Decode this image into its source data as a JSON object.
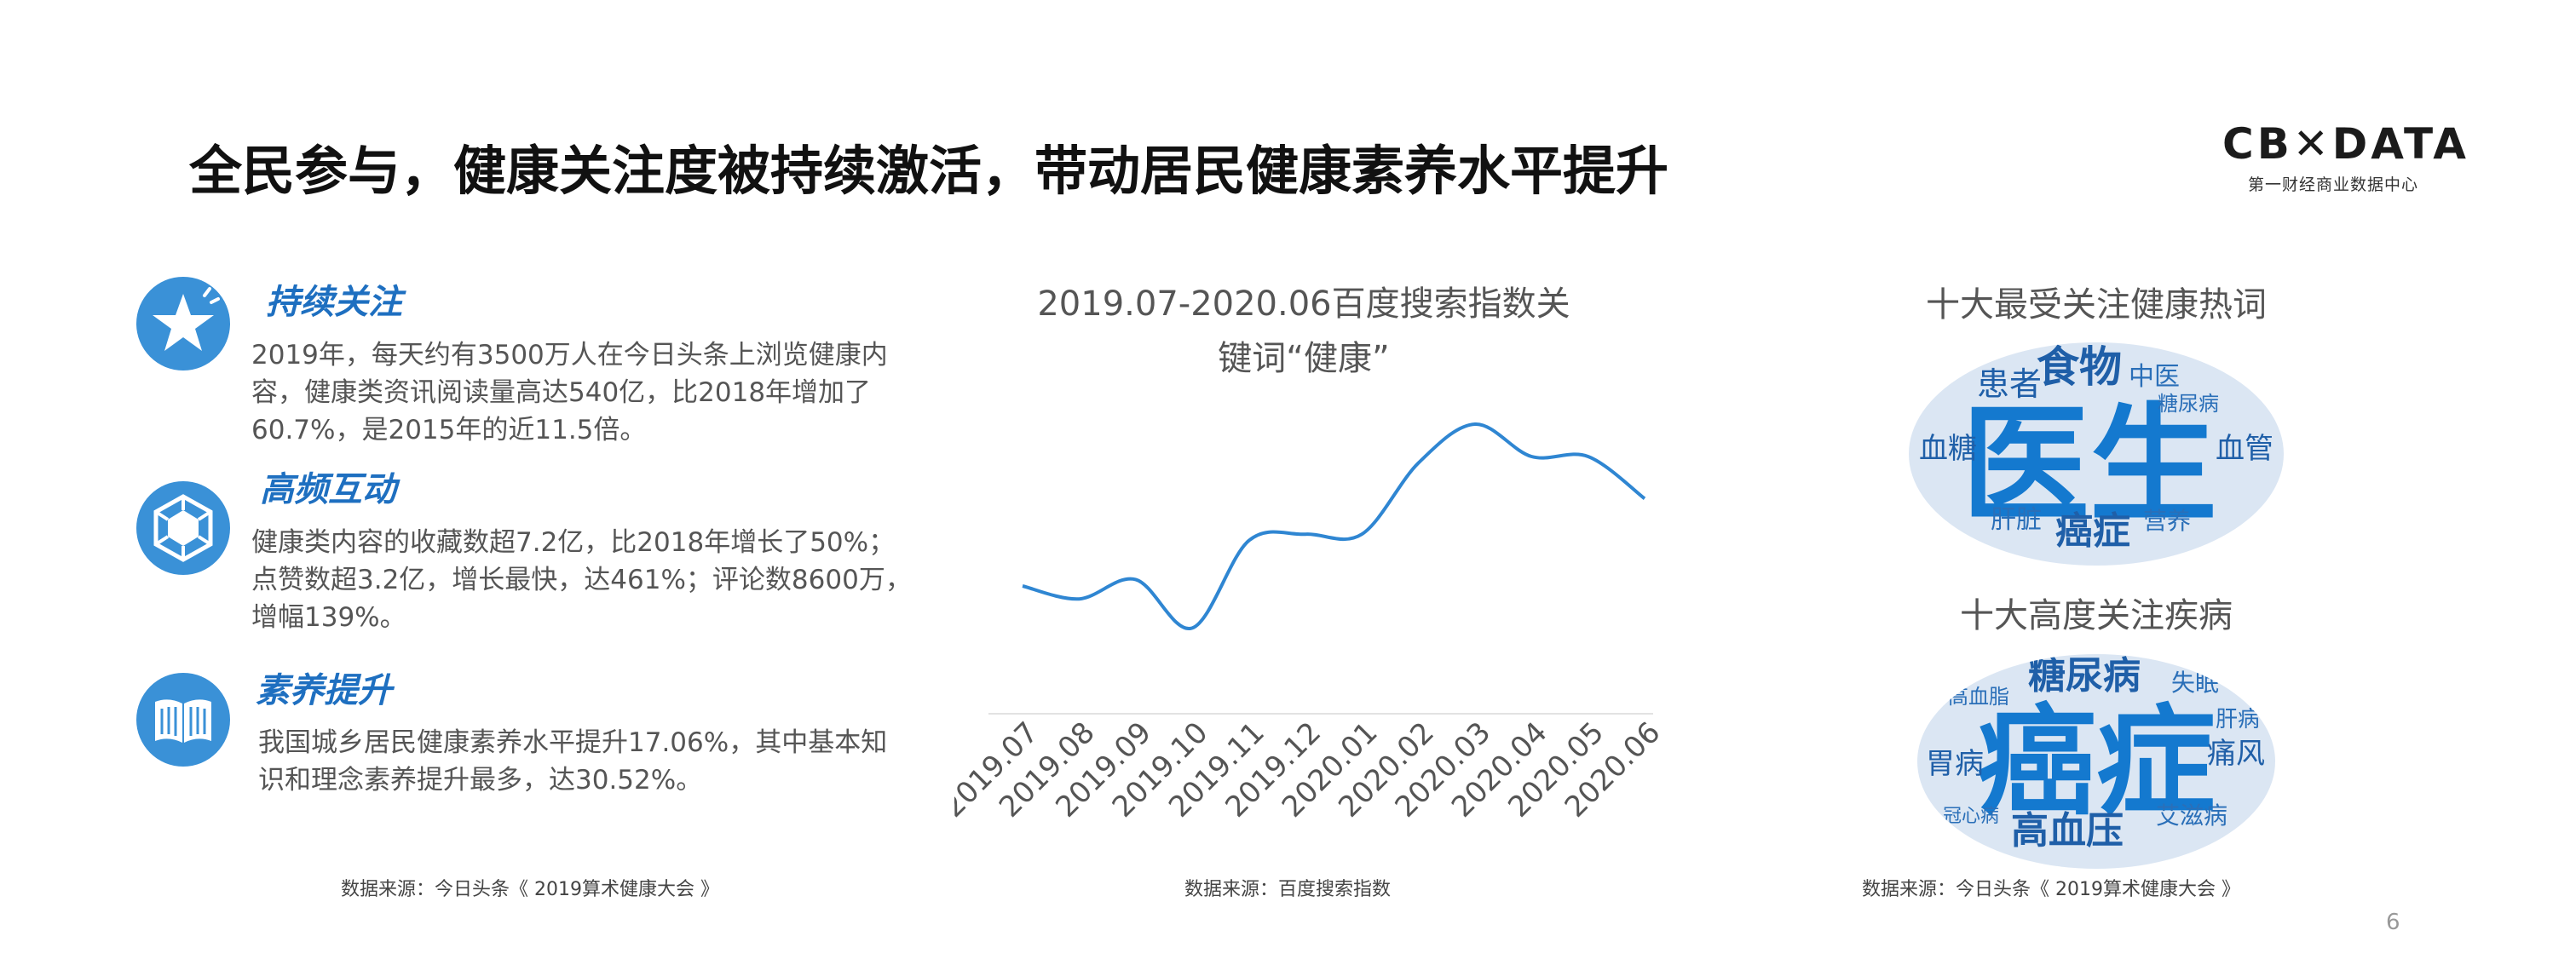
{
  "page": {
    "title": "全民参与，健康关注度被持续激活，带动居民健康素养水平提升",
    "logo_main": "CB✕DATA",
    "logo_sub": "第一财经商业数据中心",
    "page_number": "6"
  },
  "sections": [
    {
      "heading": "持续关注",
      "icon": "star-icon",
      "body": "2019年，每天约有3500万人在今日头条上浏览健康内容，健康类资讯阅读量高达540亿，比2018年增加了60.7%，是2015年的近11.5倍。"
    },
    {
      "heading": "高频互动",
      "icon": "hexagon-network-icon",
      "body": "健康类内容的收藏数超7.2亿，比2018年增长了50%；点赞数超3.2亿，增长最快，达461%；评论数8600万，增幅139%。"
    },
    {
      "heading": "素养提升",
      "icon": "open-book-icon",
      "body": "我国城乡居民健康素养水平提升17.06%，其中基本知识和理念素养提升最多，达30.52%。"
    }
  ],
  "sources": {
    "left": "数据来源：今日头条《 2019算术健康大会 》",
    "middle": "数据来源：百度搜索指数",
    "right": "数据来源：今日头条《 2019算术健康大会 》"
  },
  "chart_data": {
    "type": "line",
    "title": "2019.07-2020.06百度搜索指数关键词“健康”",
    "title_line1": "2019.07-2020.06百度搜索指数关",
    "title_line2": "键词“健康”",
    "categories": [
      "2019.07",
      "2019.08",
      "2019.09",
      "2019.10",
      "2019.11",
      "2019.12",
      "2020.01",
      "2020.02",
      "2020.03",
      "2020.04",
      "2020.05",
      "2020.06"
    ],
    "series": [
      {
        "values": [
          40,
          36,
          42,
          27,
          54,
          56,
          56,
          78,
          90,
          80,
          80,
          67
        ]
      }
    ],
    "ylim": [
      0,
      100
    ],
    "y_axis_shown": false,
    "grid": false,
    "line_color": "#2f86d2"
  },
  "word_clouds": [
    {
      "title": "十大最受关注健康热词",
      "words": [
        "医生",
        "食物",
        "患者",
        "中医",
        "血糖",
        "血管",
        "癌症",
        "营养",
        "肝脏",
        "糖尿病"
      ]
    },
    {
      "title": "十大高度关注疾病",
      "words": [
        "癌症",
        "糖尿病",
        "高血压",
        "痛风",
        "胃病",
        "肝病",
        "失眠",
        "高血脂",
        "冠心病",
        "艾滋病"
      ]
    }
  ],
  "colors": {
    "accent": "#3a91d7",
    "heading": "#1e6fc0",
    "cloud_bg": "#dbe6f3",
    "cloud_big": "#1479cf",
    "cloud_mid": "#1f5fa8",
    "cloud_small": "#7aa9d6"
  }
}
